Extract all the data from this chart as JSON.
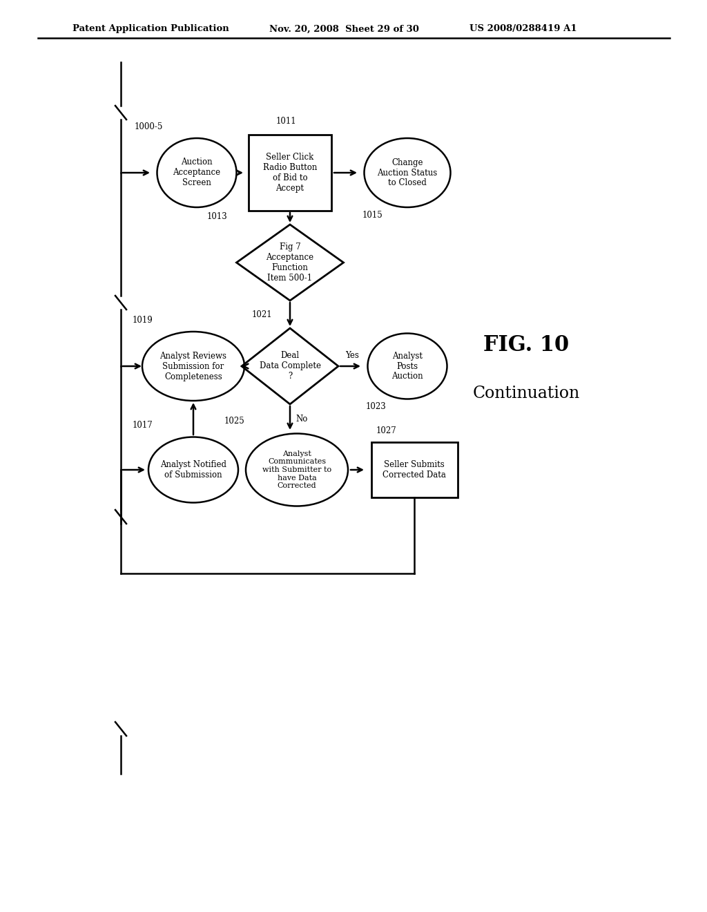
{
  "bg_color": "#ffffff",
  "header_text": "Patent Application Publication",
  "header_date": "Nov. 20, 2008  Sheet 29 of 30",
  "header_patent": "US 2008/0288419 A1",
  "fig_label": "FIG. 10",
  "fig_sublabel": "Continuation"
}
